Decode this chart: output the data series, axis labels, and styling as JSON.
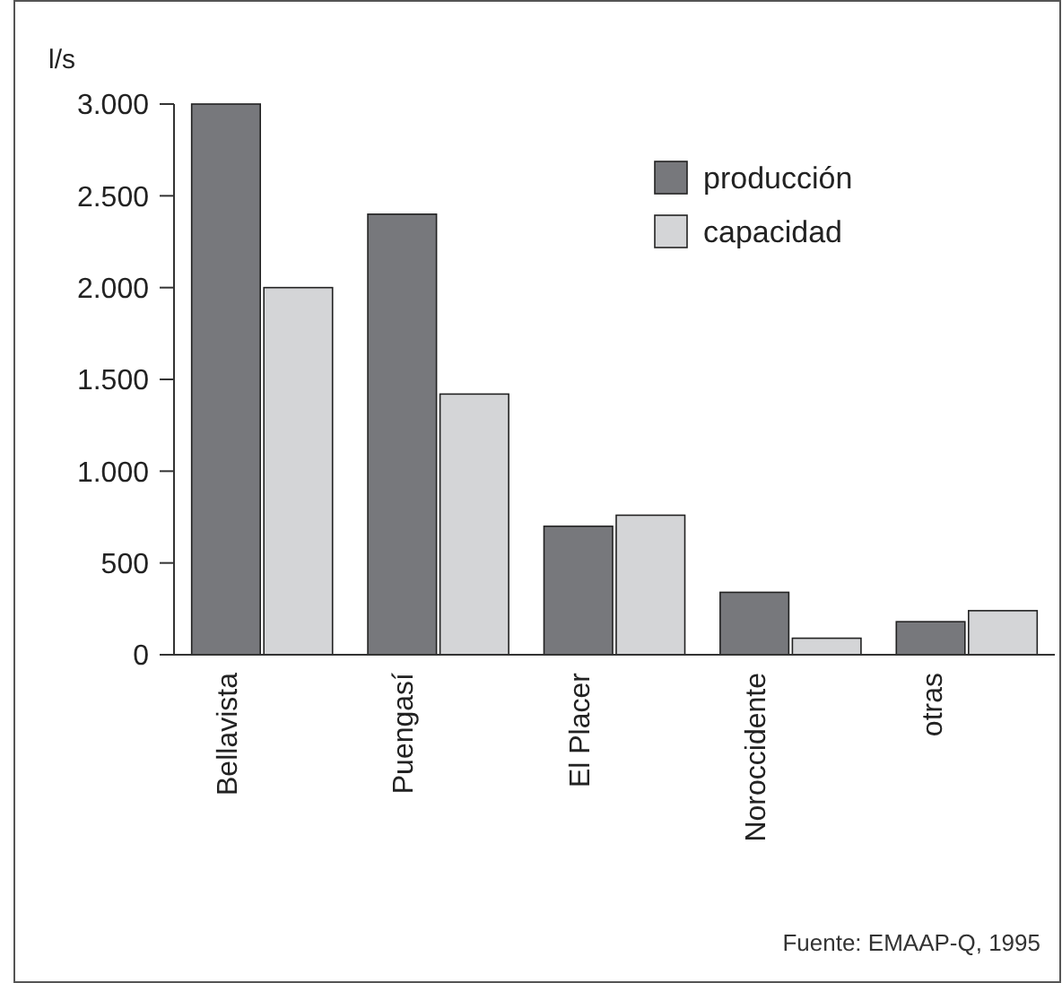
{
  "chart_data": {
    "type": "bar",
    "ylabel": "l/s",
    "categories": [
      "Bellavista",
      "Puengasí",
      "El Placer",
      "Noroccidente",
      "otras"
    ],
    "series": [
      {
        "name": "producción",
        "color": "#77787c",
        "values": [
          3000,
          2400,
          700,
          340,
          180
        ]
      },
      {
        "name": "capacidad",
        "color": "#d4d5d7",
        "values": [
          2000,
          1420,
          760,
          90,
          240
        ]
      }
    ],
    "ylim": [
      0,
      3000
    ],
    "yticks": [
      0,
      500,
      {
        "value": 1000,
        "label": "1.000"
      },
      {
        "value": 1500,
        "label": "1.500"
      },
      {
        "value": 2000,
        "label": "2.000"
      },
      {
        "value": 2500,
        "label": "2.500"
      },
      {
        "value": 3000,
        "label": "3.000"
      }
    ],
    "legend": "top right",
    "grid": false,
    "annotations": [
      "Fuente: EMAAP-Q, 1995"
    ]
  }
}
